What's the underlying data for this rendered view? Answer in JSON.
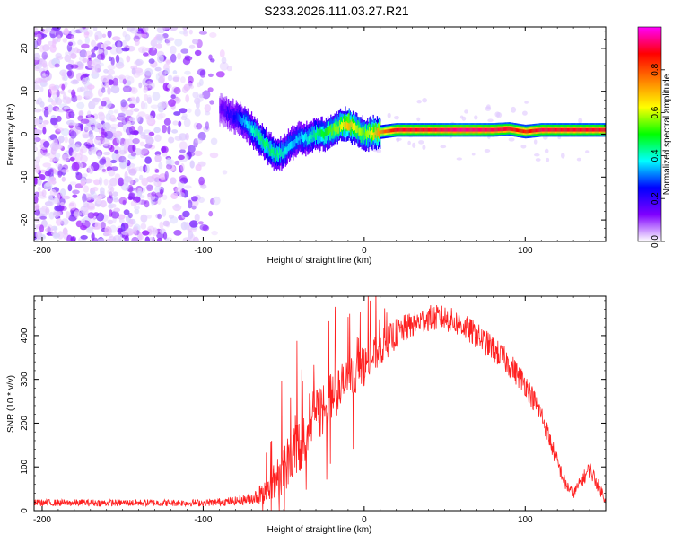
{
  "title": "S233.2026.111.03.27.R21",
  "chart_data": [
    {
      "type": "heatmap",
      "panel": "spectrogram",
      "xlabel": "Height of straight line (km)",
      "ylabel": "Frequency (Hz)",
      "xlim": [
        -205,
        150
      ],
      "ylim": [
        -25,
        25
      ],
      "xticks": [
        -200,
        -100,
        0,
        100
      ],
      "xtick_labels": [
        "-200",
        "-100",
        "0",
        "100"
      ],
      "yticks": [
        -20,
        -10,
        0,
        10,
        20
      ],
      "ytick_labels": [
        "-20",
        "-10",
        "0",
        "10",
        "20"
      ],
      "colorbar": {
        "label": "Normalized spectral amplitude",
        "range": [
          0,
          1
        ],
        "ticks": [
          0.0,
          0.2,
          0.4,
          0.6,
          0.8
        ],
        "tick_labels": [
          "0.0",
          "0.2",
          "0.4",
          "0.6",
          "0.8"
        ],
        "colors": [
          "#ffffff",
          "#8000ff",
          "#0000ff",
          "#00ffff",
          "#00ff00",
          "#ffff00",
          "#ff8000",
          "#ff0000",
          "#ff00ff"
        ]
      },
      "signal_track": {
        "x": [
          -90,
          -80,
          -75,
          -70,
          -65,
          -60,
          -55,
          -50,
          -45,
          -40,
          -35,
          -30,
          -25,
          -20,
          -15,
          -10,
          -5,
          0,
          10,
          20,
          40,
          60,
          80,
          90,
          100,
          110,
          120,
          150
        ],
        "frequency": [
          6,
          4,
          3,
          1,
          -1,
          -3,
          -5,
          -4,
          -2,
          -1,
          -1,
          0,
          0,
          1,
          2,
          2.5,
          1,
          0,
          0.5,
          1,
          1,
          1,
          1,
          1.2,
          0.6,
          1,
          1,
          1
        ],
        "amplitude": [
          0.15,
          0.25,
          0.35,
          0.4,
          0.45,
          0.45,
          0.45,
          0.4,
          0.35,
          0.35,
          0.4,
          0.45,
          0.5,
          0.55,
          0.6,
          0.7,
          0.6,
          0.55,
          0.75,
          0.9,
          0.9,
          0.95,
          0.92,
          0.9,
          0.85,
          0.92,
          0.9,
          0.9
        ]
      },
      "noise_region": {
        "x_range": [
          -205,
          -80
        ],
        "amplitude_max": 0.2
      }
    },
    {
      "type": "line",
      "panel": "snr",
      "xlabel": "Height of straight line (km)",
      "ylabel": "SNR (10 * v/v)",
      "xlim": [
        -205,
        150
      ],
      "ylim": [
        0,
        490
      ],
      "xticks": [
        -200,
        -100,
        0,
        100
      ],
      "xtick_labels": [
        "-200",
        "-100",
        "0",
        "100"
      ],
      "yticks": [
        0,
        100,
        200,
        300,
        400
      ],
      "ytick_labels": [
        "0",
        "100",
        "200",
        "300",
        "400"
      ],
      "color": "#ff2020",
      "envelope": {
        "x": [
          -205,
          -100,
          -80,
          -70,
          -60,
          -50,
          -40,
          -30,
          -20,
          -10,
          0,
          10,
          20,
          30,
          40,
          50,
          60,
          70,
          80,
          90,
          100,
          110,
          120,
          125,
          130,
          140,
          150
        ],
        "y": [
          18,
          18,
          22,
          28,
          45,
          100,
          165,
          215,
          260,
          300,
          330,
          370,
          405,
          425,
          440,
          440,
          425,
          400,
          370,
          335,
          290,
          220,
          110,
          60,
          40,
          95,
          25
        ],
        "noise": [
          8,
          8,
          10,
          14,
          30,
          60,
          80,
          70,
          60,
          50,
          45,
          40,
          35,
          30,
          30,
          30,
          30,
          30,
          30,
          30,
          28,
          25,
          20,
          15,
          12,
          20,
          12
        ]
      }
    }
  ]
}
